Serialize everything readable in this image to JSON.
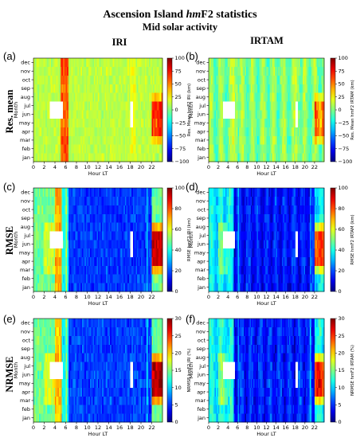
{
  "figure": {
    "title_main_prefix": "Ascension Island ",
    "title_main_italic": "hm",
    "title_main_suffix": "F2 statistics",
    "subtitle": "Mid solar activity",
    "columns": [
      "IRI",
      "IRTAM"
    ],
    "rows": [
      "Res. mean",
      "RMSE",
      "NRMSE"
    ],
    "panel_letters": [
      "(a)",
      "(b)",
      "(c)",
      "(d)",
      "(e)",
      "(f)"
    ]
  },
  "colors": {
    "colormap": "jet",
    "missing_cell": "#ffffff"
  },
  "chart_data": [
    {
      "type": "heatmap",
      "panel": "(a)",
      "model": "IRI",
      "metric": "res_mean",
      "xlabel": "Hour LT",
      "ylabel": "Month",
      "xticks": [
        "0",
        "2",
        "4",
        "6",
        "8",
        "10",
        "12",
        "14",
        "16",
        "18",
        "20",
        "22"
      ],
      "yticks": [
        "jan",
        "feb",
        "mar",
        "apr",
        "may",
        "jun",
        "jul",
        "aug",
        "sep",
        "oct",
        "nov",
        "dec"
      ],
      "colorbar_label": "Res. Mean hmF2 IRI (km)",
      "colorbar_ticks": [
        "−100",
        "−75",
        "−50",
        "−25",
        "0",
        "25",
        "50",
        "75",
        "100"
      ],
      "clim": [
        -100,
        100
      ],
      "base": 10,
      "missing": "jun-jul 3-5 LT; may-jun 18 LT",
      "features": "dawn 5-6 LT strongly positive (~60); 22-23 LT positive (~40-80) in apr-jul; otherwise ~0 to +25"
    },
    {
      "type": "heatmap",
      "panel": "(b)",
      "model": "IRTAM",
      "metric": "res_mean",
      "xlabel": "Hour LT",
      "ylabel": "Month",
      "xticks": [
        "0",
        "2",
        "4",
        "6",
        "8",
        "10",
        "12",
        "14",
        "16",
        "18",
        "20",
        "22"
      ],
      "yticks": [
        "jan",
        "feb",
        "mar",
        "apr",
        "may",
        "jun",
        "jul",
        "aug",
        "sep",
        "oct",
        "nov",
        "dec"
      ],
      "colorbar_label": "Res. Mean hmF2 IRTAM (km)",
      "colorbar_ticks": [
        "−100",
        "−75",
        "−50",
        "−25",
        "0",
        "25",
        "50",
        "75",
        "100"
      ],
      "clim": [
        -100,
        100
      ],
      "base": 0,
      "missing": "jun-jul 3-5 LT; may-jun 18 LT",
      "features": "mostly ~0 with vertical stripes ~±25; 22 LT positive (~50-90) in apr-jul"
    },
    {
      "type": "heatmap",
      "panel": "(c)",
      "model": "IRI",
      "metric": "rmse",
      "xlabel": "Hour LT",
      "ylabel": "Month",
      "xticks": [
        "0",
        "2",
        "4",
        "6",
        "8",
        "10",
        "12",
        "14",
        "16",
        "18",
        "20",
        "22"
      ],
      "yticks": [
        "jan",
        "feb",
        "mar",
        "apr",
        "may",
        "jun",
        "jul",
        "aug",
        "sep",
        "oct",
        "nov",
        "dec"
      ],
      "colorbar_label": "RMSE hmF2 IRI (km)",
      "colorbar_ticks": [
        "0",
        "20",
        "40",
        "60",
        "80",
        "100"
      ],
      "clim": [
        0,
        100
      ],
      "base": 40,
      "missing": "jun-jul 3-5 LT; may-jun 18 LT",
      "features": "night 0-5 LT ~40-60; dawn 4-6 LT high ~60-80; day ~15-25; 22-23 LT ~70-90 in apr-jul"
    },
    {
      "type": "heatmap",
      "panel": "(d)",
      "model": "IRTAM",
      "metric": "rmse",
      "xlabel": "Hour LT",
      "ylabel": "Month",
      "xticks": [
        "0",
        "2",
        "4",
        "6",
        "8",
        "10",
        "12",
        "14",
        "16",
        "18",
        "20",
        "22"
      ],
      "yticks": [
        "jan",
        "feb",
        "mar",
        "apr",
        "may",
        "jun",
        "jul",
        "aug",
        "sep",
        "oct",
        "nov",
        "dec"
      ],
      "colorbar_label": "RMSE hmF2 IRTAM (km)",
      "colorbar_ticks": [
        "0",
        "20",
        "40",
        "60",
        "80",
        "100"
      ],
      "clim": [
        0,
        100
      ],
      "base": 25,
      "missing": "jun-jul 3-5 LT; may-jun 18 LT",
      "features": "night ~30-45; day ~10-25; 22 LT ~60-90 in apr-jul"
    },
    {
      "type": "heatmap",
      "panel": "(e)",
      "model": "IRI",
      "metric": "nrmse",
      "xlabel": "Hour LT",
      "ylabel": "Month",
      "xticks": [
        "0",
        "2",
        "4",
        "6",
        "8",
        "10",
        "12",
        "14",
        "16",
        "18",
        "20",
        "22"
      ],
      "yticks": [
        "jan",
        "feb",
        "mar",
        "apr",
        "may",
        "jun",
        "jul",
        "aug",
        "sep",
        "oct",
        "nov",
        "dec"
      ],
      "colorbar_label": "NRMSE hmF2 IRI (%)",
      "colorbar_ticks": [
        "0",
        "5",
        "10",
        "15",
        "20",
        "25",
        "30"
      ],
      "clim": [
        0,
        30
      ],
      "base": 12,
      "missing": "jun-jul 3-5 LT; may-jun 18 LT",
      "features": "night ~12-18; dawn ~20; day ~5-8; 22-23 LT ~20-28 in apr-jul"
    },
    {
      "type": "heatmap",
      "panel": "(f)",
      "model": "IRTAM",
      "metric": "nrmse",
      "xlabel": "Hour LT",
      "ylabel": "Month",
      "xticks": [
        "0",
        "2",
        "4",
        "6",
        "8",
        "10",
        "12",
        "14",
        "16",
        "18",
        "20",
        "22"
      ],
      "yticks": [
        "jan",
        "feb",
        "mar",
        "apr",
        "may",
        "jun",
        "jul",
        "aug",
        "sep",
        "oct",
        "nov",
        "dec"
      ],
      "colorbar_label": "NRMSE hmF2 IRTAM (%)",
      "colorbar_ticks": [
        "0",
        "5",
        "10",
        "15",
        "20",
        "25",
        "30"
      ],
      "clim": [
        0,
        30
      ],
      "base": 8,
      "missing": "jun-jul 3-5 LT; may-jun 18 LT",
      "features": "night ~10-14; day ~4-7; 22 LT ~20-28 in apr-jul"
    }
  ]
}
